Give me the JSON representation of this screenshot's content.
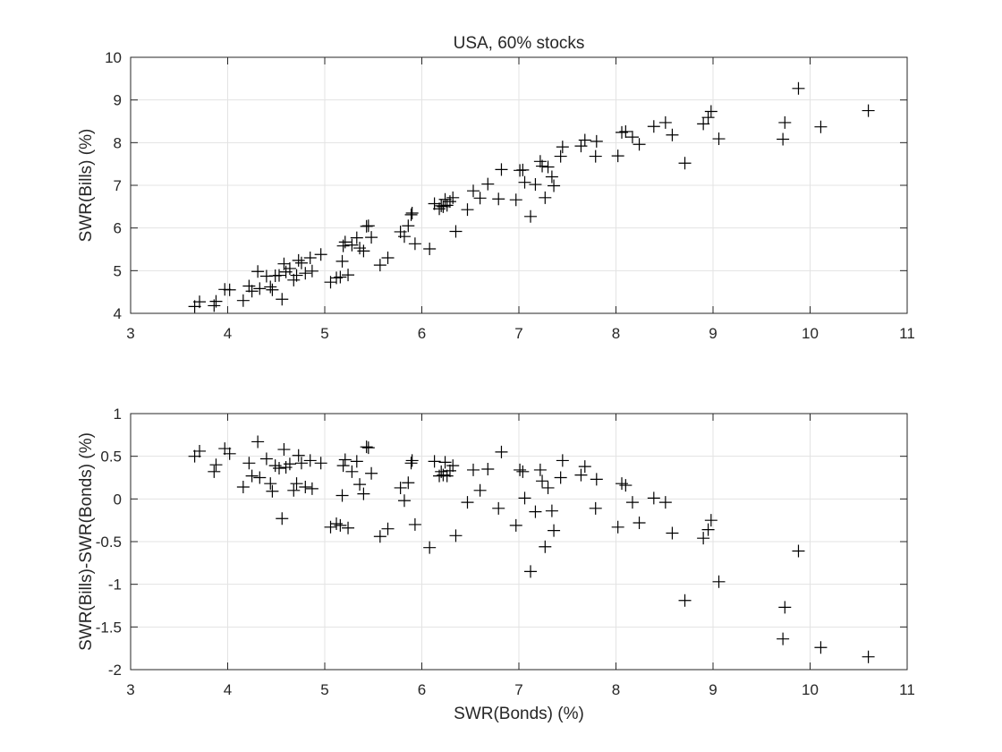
{
  "figure_title": "USA, 60% stocks",
  "chart_data": [
    {
      "type": "scatter",
      "title": "USA, 60% stocks",
      "xlabel": "",
      "ylabel": "SWR(Bills) (%)",
      "xlim": [
        3,
        11
      ],
      "ylim": [
        4,
        10
      ],
      "xticks": [
        "3",
        "4",
        "5",
        "6",
        "7",
        "8",
        "9",
        "10",
        "11"
      ],
      "yticks": [
        "4",
        "5",
        "6",
        "7",
        "8",
        "9",
        "10"
      ],
      "grid": true,
      "marker": "+",
      "series": [
        {
          "x": [
            3.66,
            3.71,
            3.86,
            3.88,
            3.97,
            4.02,
            4.16,
            4.22,
            4.25,
            4.31,
            4.33,
            4.4,
            4.44,
            4.46,
            4.49,
            4.53,
            4.56,
            4.58,
            4.6,
            4.64,
            4.68,
            4.71,
            4.73,
            4.76,
            4.8,
            4.85,
            4.87,
            4.96,
            5.06,
            5.12,
            5.16,
            5.18,
            5.19,
            5.21,
            5.24,
            5.28,
            5.33,
            5.36,
            5.4,
            5.43,
            5.45,
            5.48,
            5.57,
            5.65,
            5.78,
            5.82,
            5.86,
            5.89,
            5.9,
            5.93,
            6.08,
            6.13,
            6.18,
            6.2,
            6.22,
            6.24,
            6.26,
            6.29,
            6.32,
            6.35,
            6.47,
            6.53,
            6.6,
            6.68,
            6.79,
            6.82,
            6.97,
            7.01,
            7.04,
            7.06,
            7.12,
            7.17,
            7.22,
            7.24,
            7.27,
            7.3,
            7.34,
            7.36,
            7.43,
            7.45,
            7.64,
            7.68,
            7.79,
            7.8,
            8.02,
            8.06,
            8.1,
            8.17,
            8.24,
            8.39,
            8.51,
            8.58,
            8.71,
            8.9,
            8.95,
            8.98,
            9.06,
            9.72,
            9.74,
            9.88,
            10.11,
            10.6
          ],
          "y": [
            4.16,
            4.27,
            4.18,
            4.28,
            4.56,
            4.55,
            4.3,
            4.64,
            4.52,
            4.98,
            4.58,
            4.87,
            4.62,
            4.55,
            4.88,
            4.89,
            4.33,
            5.16,
            4.97,
            5.05,
            4.78,
            4.89,
            5.24,
            5.18,
            4.94,
            5.3,
            4.99,
            5.38,
            4.73,
            4.83,
            4.85,
            5.22,
            5.58,
            5.67,
            4.9,
            5.6,
            5.77,
            5.53,
            5.46,
            6.04,
            6.05,
            5.78,
            5.13,
            5.3,
            5.91,
            5.8,
            6.05,
            6.31,
            6.35,
            5.63,
            5.51,
            6.57,
            6.45,
            6.52,
            6.5,
            6.67,
            6.53,
            6.62,
            6.71,
            5.92,
            6.43,
            6.87,
            6.7,
            7.03,
            6.68,
            7.37,
            6.66,
            7.35,
            7.36,
            7.07,
            6.27,
            7.02,
            7.56,
            7.45,
            6.71,
            7.43,
            7.2,
            6.99,
            7.68,
            7.9,
            7.92,
            8.06,
            7.68,
            8.03,
            7.69,
            8.24,
            8.26,
            8.13,
            7.96,
            8.38,
            8.47,
            8.18,
            7.52,
            8.44,
            8.59,
            8.73,
            8.09,
            8.08,
            8.47,
            9.27,
            8.37,
            8.75
          ]
        }
      ]
    },
    {
      "type": "scatter",
      "title": "",
      "xlabel": "SWR(Bonds) (%)",
      "ylabel": "SWR(Bills)-SWR(Bonds) (%)",
      "xlim": [
        3,
        11
      ],
      "ylim": [
        -2,
        1
      ],
      "xticks": [
        "3",
        "4",
        "5",
        "6",
        "7",
        "8",
        "9",
        "10",
        "11"
      ],
      "yticks": [
        "-2",
        "-1.5",
        "-1",
        "-0.5",
        "0",
        "0.5",
        "1"
      ],
      "grid": true,
      "marker": "+",
      "series": [
        {
          "x": [
            3.66,
            3.71,
            3.86,
            3.88,
            3.97,
            4.02,
            4.16,
            4.22,
            4.25,
            4.31,
            4.33,
            4.4,
            4.44,
            4.46,
            4.49,
            4.53,
            4.56,
            4.58,
            4.6,
            4.64,
            4.68,
            4.71,
            4.73,
            4.76,
            4.8,
            4.85,
            4.87,
            4.96,
            5.06,
            5.12,
            5.16,
            5.18,
            5.19,
            5.21,
            5.24,
            5.28,
            5.33,
            5.36,
            5.4,
            5.43,
            5.45,
            5.48,
            5.57,
            5.65,
            5.78,
            5.82,
            5.86,
            5.89,
            5.9,
            5.93,
            6.08,
            6.13,
            6.18,
            6.2,
            6.22,
            6.24,
            6.26,
            6.29,
            6.32,
            6.35,
            6.47,
            6.53,
            6.6,
            6.68,
            6.79,
            6.82,
            6.97,
            7.01,
            7.04,
            7.06,
            7.12,
            7.17,
            7.22,
            7.24,
            7.27,
            7.3,
            7.34,
            7.36,
            7.43,
            7.45,
            7.64,
            7.68,
            7.79,
            7.8,
            8.02,
            8.06,
            8.1,
            8.17,
            8.24,
            8.39,
            8.51,
            8.58,
            8.71,
            8.9,
            8.95,
            8.98,
            9.06,
            9.72,
            9.74,
            9.88,
            10.11,
            10.6
          ],
          "y": [
            0.5,
            0.56,
            0.32,
            0.4,
            0.59,
            0.53,
            0.14,
            0.42,
            0.27,
            0.67,
            0.25,
            0.47,
            0.18,
            0.09,
            0.39,
            0.36,
            -0.23,
            0.58,
            0.37,
            0.41,
            0.1,
            0.18,
            0.51,
            0.42,
            0.14,
            0.45,
            0.12,
            0.42,
            -0.33,
            -0.29,
            -0.31,
            0.04,
            0.39,
            0.46,
            -0.34,
            0.32,
            0.44,
            0.17,
            0.06,
            0.61,
            0.6,
            0.3,
            -0.44,
            -0.35,
            0.13,
            -0.02,
            0.19,
            0.42,
            0.45,
            -0.3,
            -0.57,
            0.44,
            0.27,
            0.32,
            0.28,
            0.43,
            0.27,
            0.33,
            0.39,
            -0.43,
            -0.04,
            0.34,
            0.1,
            0.35,
            -0.11,
            0.55,
            -0.31,
            0.34,
            0.32,
            0.01,
            -0.85,
            -0.15,
            0.34,
            0.21,
            -0.56,
            0.13,
            -0.14,
            -0.37,
            0.25,
            0.45,
            0.28,
            0.38,
            -0.11,
            0.23,
            -0.33,
            0.18,
            0.16,
            -0.04,
            -0.28,
            0.01,
            -0.04,
            -0.4,
            -1.19,
            -0.46,
            -0.36,
            -0.25,
            -0.97,
            -1.64,
            -1.27,
            -0.61,
            -1.74,
            -1.85
          ]
        }
      ]
    }
  ]
}
